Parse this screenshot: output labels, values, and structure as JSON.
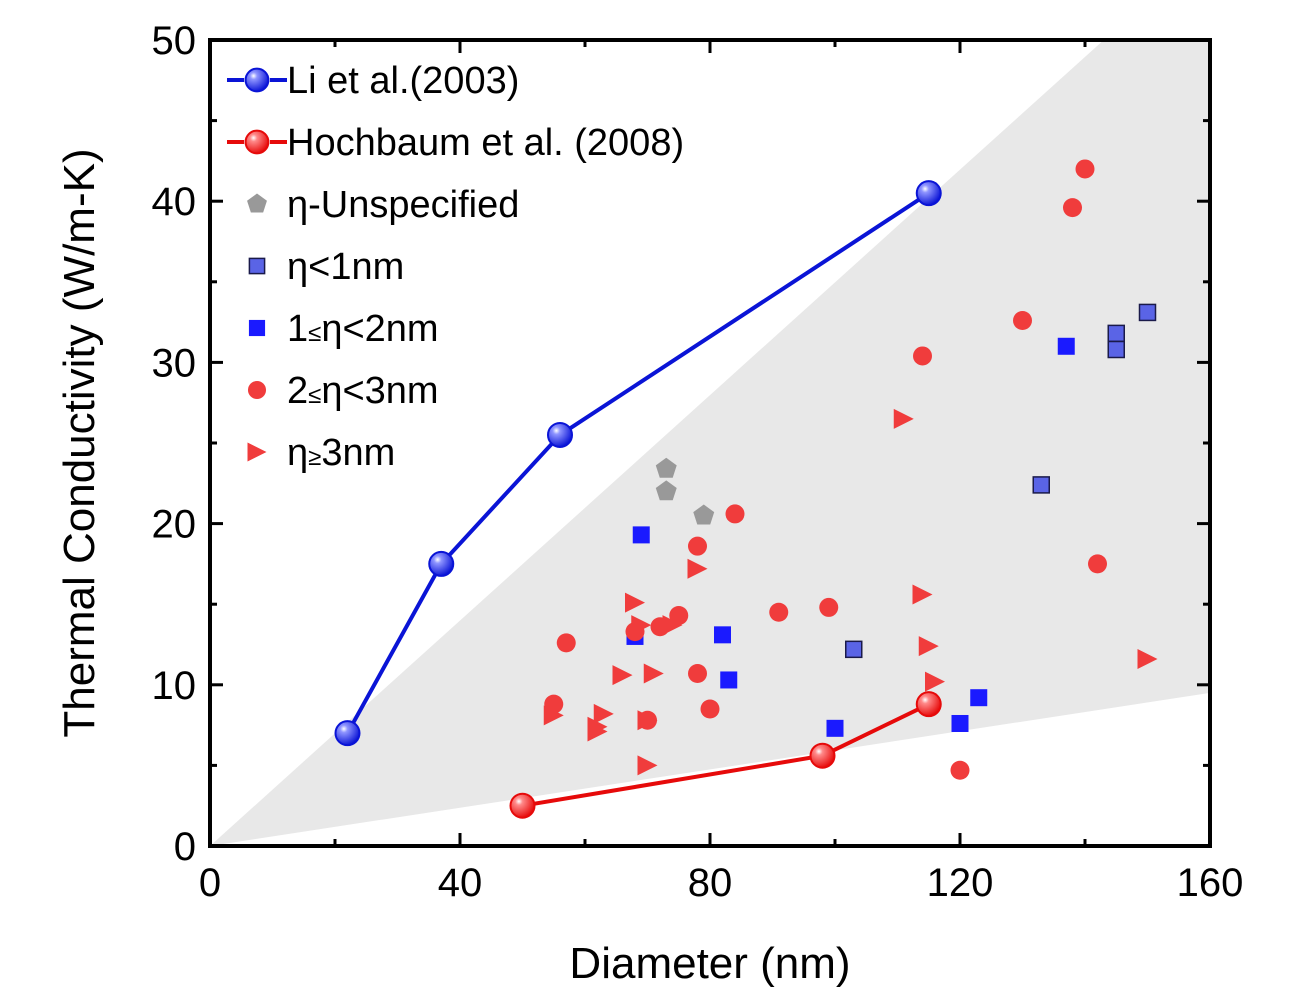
{
  "chart_data": {
    "type": "scatter",
    "title": "",
    "xlabel": "Diameter (nm)",
    "ylabel": "Thermal Conductivity (W/m-K)",
    "xlim": [
      0,
      160
    ],
    "ylim": [
      0,
      50
    ],
    "xticks": [
      0,
      40,
      80,
      120,
      160
    ],
    "yticks": [
      0,
      10,
      20,
      30,
      40,
      50
    ],
    "grid": false,
    "legend_position": "top-left",
    "shaded_region": {
      "color": "#e8e8e8",
      "polygon": [
        [
          0,
          0
        ],
        [
          143,
          50
        ],
        [
          160,
          50
        ],
        [
          160,
          9.5
        ]
      ]
    },
    "series": [
      {
        "name": "Li et al.(2003)",
        "marker": "sphere",
        "line": true,
        "color": "#0a14d6",
        "points": [
          [
            22,
            7.0
          ],
          [
            37,
            17.5
          ],
          [
            56,
            25.5
          ],
          [
            115,
            40.5
          ]
        ]
      },
      {
        "name": "Hochbaum et al. (2008)",
        "marker": "sphere",
        "line": true,
        "color": "#e60a0a",
        "points": [
          [
            50,
            2.5
          ],
          [
            98,
            5.6
          ],
          [
            115,
            8.8
          ]
        ]
      },
      {
        "name": "η-Unspecified",
        "marker": "pentagon",
        "line": false,
        "color": "#999999",
        "points": [
          [
            73,
            23.4
          ],
          [
            73,
            22.0
          ],
          [
            79,
            20.5
          ]
        ]
      },
      {
        "name": "η<1nm",
        "marker": "square-outline",
        "line": false,
        "color": "#5a64e6",
        "points": [
          [
            103,
            12.2
          ],
          [
            133,
            22.4
          ],
          [
            145,
            31.8
          ],
          [
            145,
            30.8
          ],
          [
            150,
            33.1
          ]
        ]
      },
      {
        "name": "1≤η<2nm",
        "marker": "square",
        "line": false,
        "color": "#1a1aff",
        "points": [
          [
            69,
            19.3
          ],
          [
            68,
            13.0
          ],
          [
            82,
            13.1
          ],
          [
            83,
            10.3
          ],
          [
            100,
            7.3
          ],
          [
            120,
            7.6
          ],
          [
            123,
            9.2
          ],
          [
            137,
            31.0
          ]
        ]
      },
      {
        "name": "2≤η<3nm",
        "marker": "circle",
        "line": false,
        "color": "#f03c3c",
        "points": [
          [
            57,
            12.6
          ],
          [
            55,
            8.8
          ],
          [
            68,
            13.3
          ],
          [
            70,
            7.8
          ],
          [
            72,
            13.6
          ],
          [
            75,
            14.3
          ],
          [
            78,
            18.6
          ],
          [
            78,
            10.7
          ],
          [
            80,
            8.5
          ],
          [
            84,
            20.6
          ],
          [
            91,
            14.5
          ],
          [
            99,
            14.8
          ],
          [
            114,
            30.4
          ],
          [
            120,
            4.7
          ],
          [
            130,
            32.6
          ],
          [
            138,
            39.6
          ],
          [
            140,
            42.0
          ],
          [
            142,
            17.5
          ]
        ]
      },
      {
        "name": "η≥3nm",
        "marker": "triangle-right",
        "line": false,
        "color": "#f03c3c",
        "points": [
          [
            55,
            8.1
          ],
          [
            62,
            7.4
          ],
          [
            62,
            7.1
          ],
          [
            63,
            8.2
          ],
          [
            66,
            10.6
          ],
          [
            68,
            15.1
          ],
          [
            69,
            13.7
          ],
          [
            70,
            5.0
          ],
          [
            70,
            7.8
          ],
          [
            71,
            10.7
          ],
          [
            74,
            13.7
          ],
          [
            78,
            17.2
          ],
          [
            111,
            26.5
          ],
          [
            114,
            15.6
          ],
          [
            115,
            12.4
          ],
          [
            116,
            10.2
          ],
          [
            150,
            11.6
          ]
        ]
      }
    ]
  }
}
